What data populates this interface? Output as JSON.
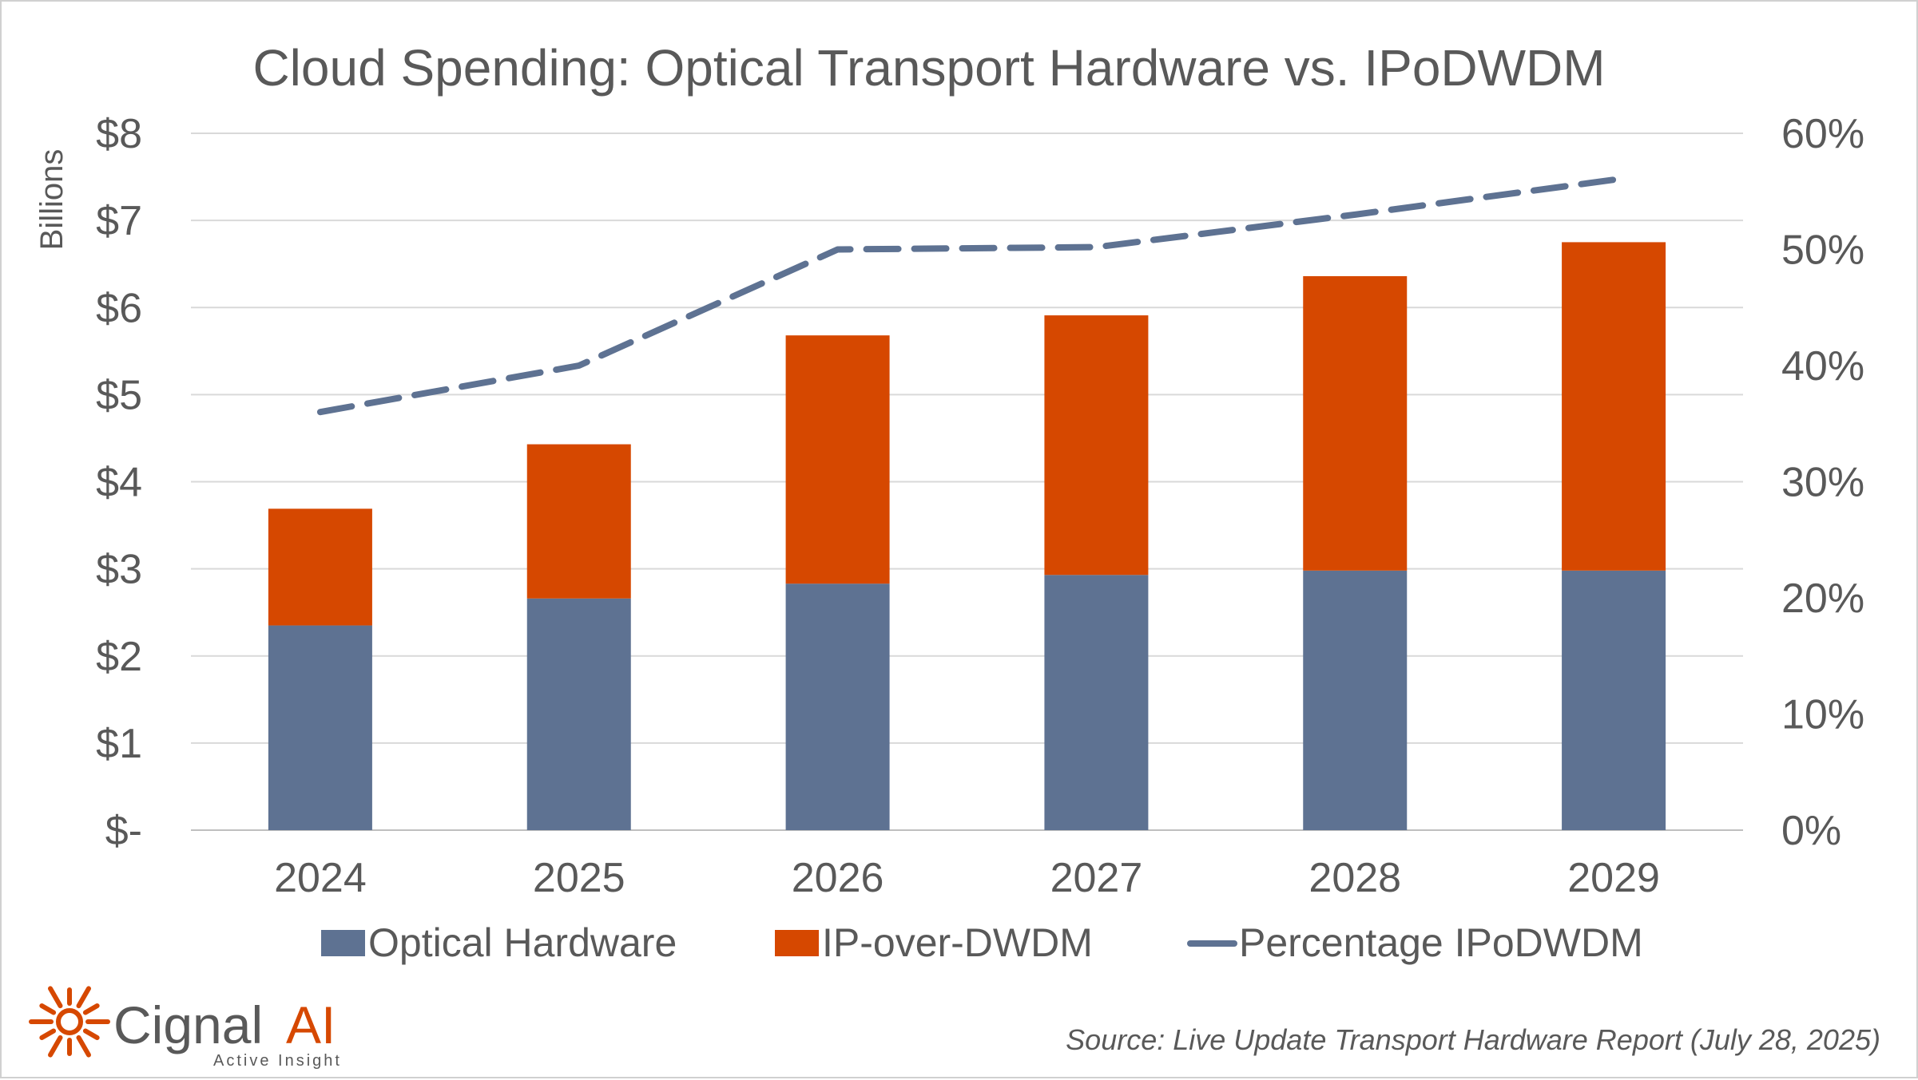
{
  "chart_data": {
    "type": "bar",
    "stacked": true,
    "title": "Cloud Spending: Optical Transport Hardware vs. IPoDWDM",
    "ylabel": "Billions",
    "y2label": "",
    "categories": [
      "2024",
      "2025",
      "2026",
      "2027",
      "2028",
      "2029"
    ],
    "ylim": [
      0,
      8
    ],
    "y_ticks": [
      "$-",
      "$1",
      "$2",
      "$3",
      "$4",
      "$5",
      "$6",
      "$7",
      "$8"
    ],
    "y2lim": [
      0,
      60
    ],
    "y2_ticks": [
      "0%",
      "10%",
      "20%",
      "30%",
      "40%",
      "50%",
      "60%"
    ],
    "series": [
      {
        "name": "Optical Hardware",
        "type": "bar",
        "color": "#5e7292",
        "values": [
          2.35,
          2.66,
          2.83,
          2.93,
          2.98,
          2.98
        ]
      },
      {
        "name": "IP-over-DWDM",
        "type": "bar",
        "color": "#d64800",
        "values": [
          1.34,
          1.77,
          2.85,
          2.98,
          3.38,
          3.77
        ]
      },
      {
        "name": "Percentage IPoDWDM",
        "type": "line",
        "style": "dashed",
        "axis": "secondary",
        "color": "#5e7292",
        "values": [
          36,
          40,
          50,
          50.2,
          53,
          56
        ]
      }
    ],
    "grid": true,
    "legend": "bottom"
  },
  "legend": {
    "optical": "Optical Hardware",
    "ipodwdm": "IP-over-DWDM",
    "percentage": "Percentage IPoDWDM"
  },
  "footer": {
    "source": "Source: Live Update Transport Hardware Report (July 28, 2025)",
    "brand_name": "Cignal",
    "brand_ai": "AI",
    "tagline": "Active Insight",
    "brand_color": "#d64800"
  }
}
